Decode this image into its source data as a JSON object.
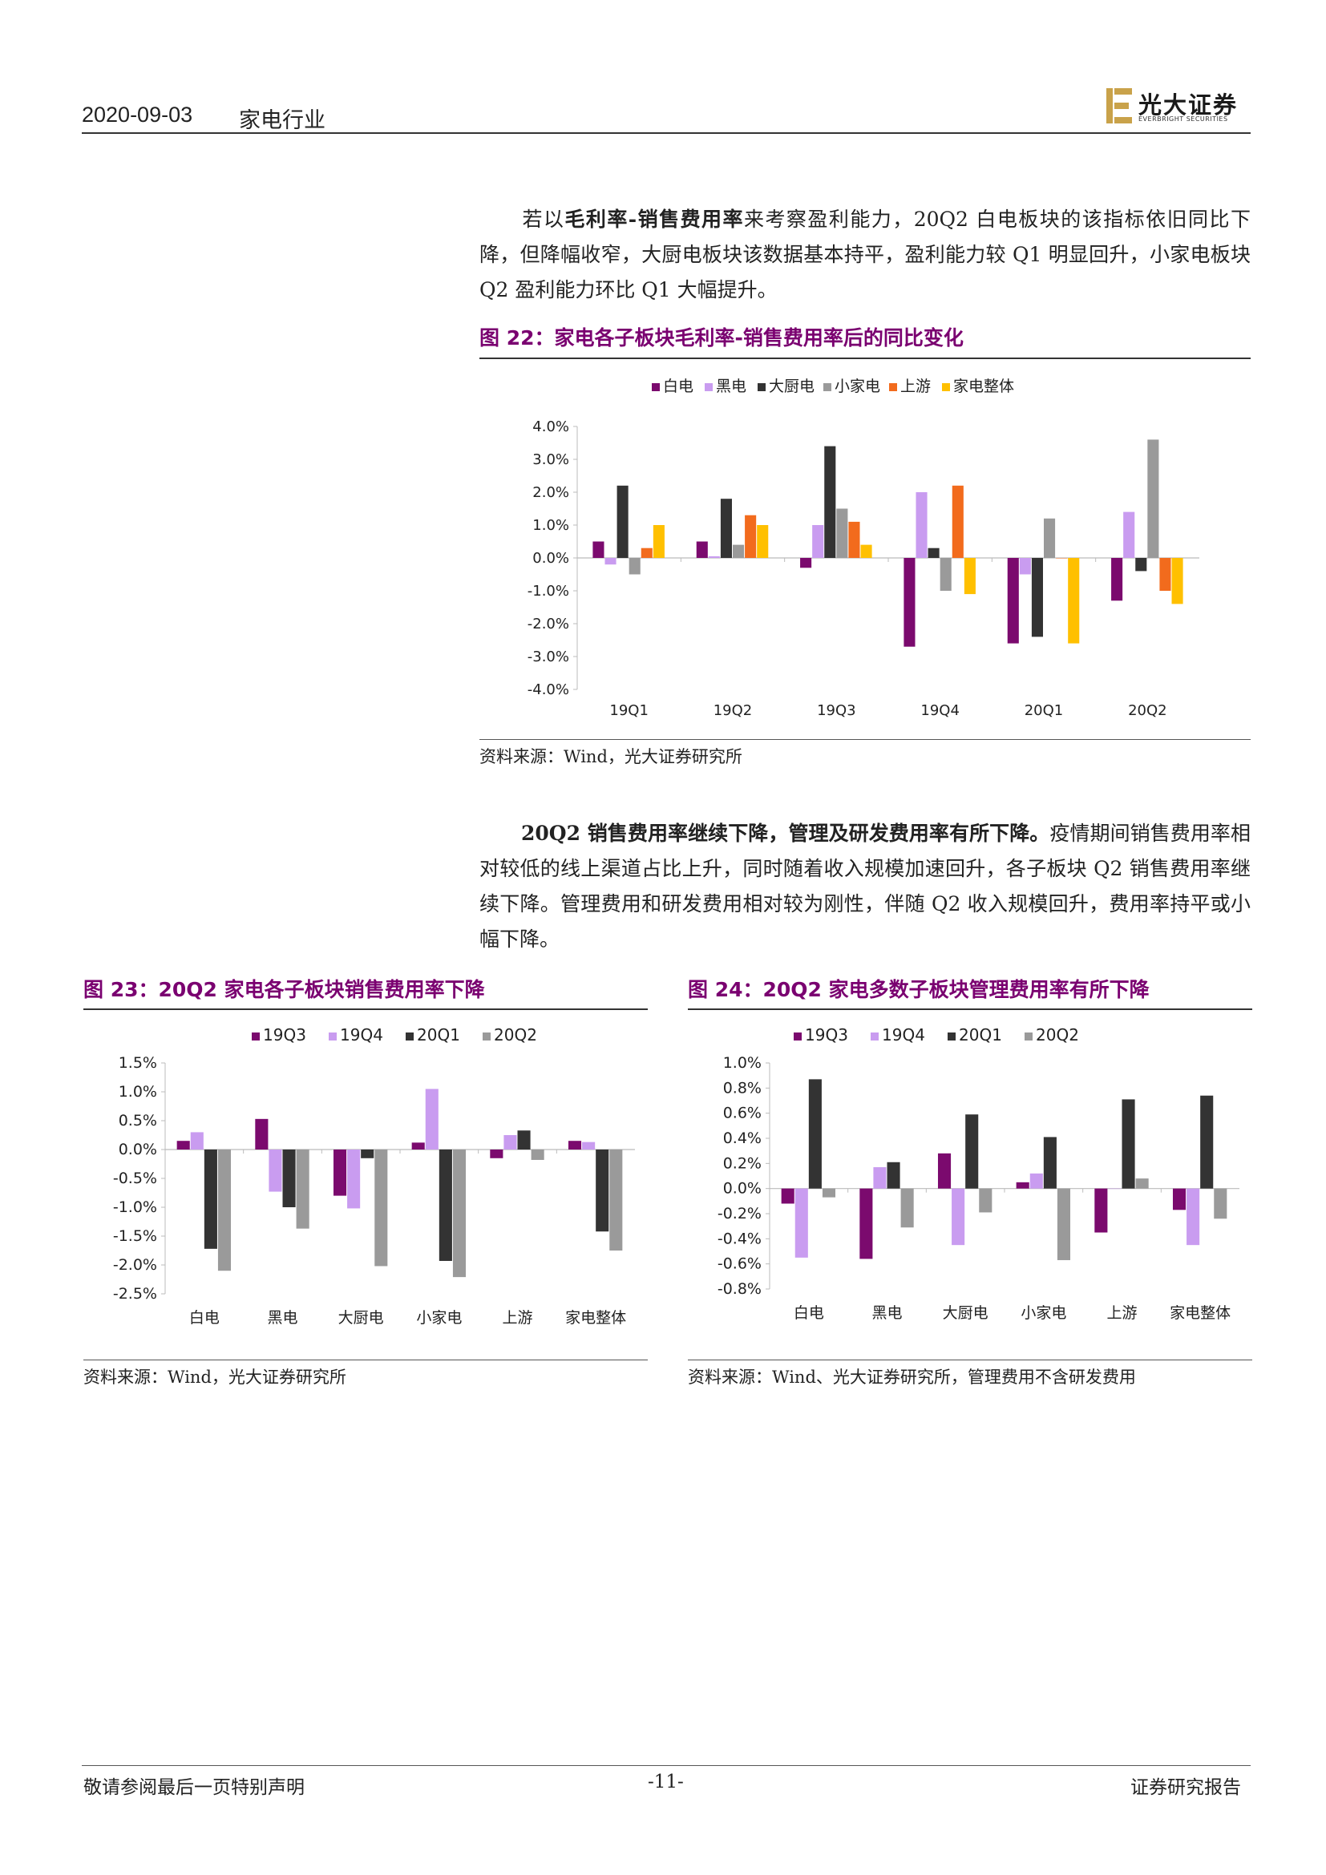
{
  "header": {
    "date": "2020-09-03",
    "industry": "家电行业",
    "logo_cn": "光大证券",
    "logo_en": "EVERBRIGHT SECURITIES"
  },
  "para1": {
    "pre": "若以",
    "bold": "毛利率-销售费用率",
    "post": "来考察盈利能力，20Q2 白电板块的该指标依旧同比下降，但降幅收窄，大厨电板块该数据基本持平，盈利能力较 Q1 明显回升，小家电板块 Q2 盈利能力环比 Q1 大幅提升。"
  },
  "para2": {
    "bold": "20Q2 销售费用率继续下降，管理及研发费用率有所下降。",
    "post": "疫情期间销售费用率相对较低的线上渠道占比上升，同时随着收入规模加速回升，各子板块 Q2 销售费用率继续下降。管理费用和研发费用相对较为刚性，伴随 Q2 收入规模回升，费用率持平或小幅下降。"
  },
  "figures": {
    "f22": {
      "title": "图 22：家电各子板块毛利率-销售费用率后的同比变化",
      "source": "资料来源：Wind，光大证券研究所"
    },
    "f23": {
      "title": "图 23：20Q2 家电各子板块销售费用率下降",
      "source": "资料来源：Wind，光大证券研究所"
    },
    "f24": {
      "title": "图 24：20Q2 家电多数子板块管理费用率有所下降",
      "source": "资料来源：Wind、光大证券研究所，管理费用不含研发费用"
    }
  },
  "footer": {
    "left": "敬请参阅最后一页特别声明",
    "page": "-11-",
    "right": "证券研究报告"
  },
  "chart_data": [
    {
      "id": "f22",
      "type": "bar",
      "categories": [
        "19Q1",
        "19Q2",
        "19Q3",
        "19Q4",
        "20Q1",
        "20Q2"
      ],
      "ylim": [
        -0.04,
        0.04
      ],
      "yticks": [
        "4.0%",
        "3.0%",
        "2.0%",
        "1.0%",
        "0.0%",
        "-1.0%",
        "-2.0%",
        "-3.0%",
        "-4.0%"
      ],
      "legend": "top",
      "series": [
        {
          "name": "白电",
          "color": "#7b0a6e",
          "values": [
            0.005,
            0.005,
            -0.003,
            -0.027,
            -0.026,
            -0.013
          ]
        },
        {
          "name": "黑电",
          "color": "#c99cf0",
          "values": [
            -0.002,
            0.0005,
            0.01,
            0.02,
            -0.005,
            0.014
          ]
        },
        {
          "name": "大厨电",
          "color": "#333333",
          "values": [
            0.022,
            0.018,
            0.034,
            0.003,
            -0.024,
            -0.004
          ]
        },
        {
          "name": "小家电",
          "color": "#9a9a9a",
          "values": [
            -0.005,
            0.004,
            0.015,
            -0.01,
            0.012,
            0.036
          ]
        },
        {
          "name": "上游",
          "color": "#f26b1d",
          "values": [
            0.003,
            0.013,
            0.011,
            0.022,
            0.0,
            -0.01
          ]
        },
        {
          "name": "家电整体",
          "color": "#ffc000",
          "values": [
            0.01,
            0.01,
            0.004,
            -0.011,
            -0.026,
            -0.014
          ]
        }
      ]
    },
    {
      "id": "f23",
      "type": "bar",
      "categories": [
        "白电",
        "黑电",
        "大厨电",
        "小家电",
        "上游",
        "家电整体"
      ],
      "ylim": [
        -0.025,
        0.015
      ],
      "yticks": [
        "1.5%",
        "1.0%",
        "0.5%",
        "0.0%",
        "-0.5%",
        "-1.0%",
        "-1.5%",
        "-2.0%",
        "-2.5%"
      ],
      "legend": "top",
      "series": [
        {
          "name": "19Q3",
          "color": "#7b0a6e",
          "values": [
            0.0015,
            0.0053,
            -0.008,
            0.0012,
            -0.0015,
            0.0015
          ]
        },
        {
          "name": "19Q4",
          "color": "#c99cf0",
          "values": [
            0.003,
            -0.0073,
            -0.0102,
            0.0105,
            0.0025,
            0.0013
          ]
        },
        {
          "name": "20Q1",
          "color": "#333333",
          "values": [
            -0.0172,
            -0.01,
            -0.0015,
            -0.0193,
            0.0033,
            -0.0142
          ]
        },
        {
          "name": "20Q2",
          "color": "#9a9a9a",
          "values": [
            -0.021,
            -0.0137,
            -0.0202,
            -0.0221,
            -0.0018,
            -0.0175
          ]
        }
      ]
    },
    {
      "id": "f24",
      "type": "bar",
      "categories": [
        "白电",
        "黑电",
        "大厨电",
        "小家电",
        "上游",
        "家电整体"
      ],
      "ylim": [
        -0.008,
        0.01
      ],
      "yticks": [
        "1.0%",
        "0.8%",
        "0.6%",
        "0.4%",
        "0.2%",
        "0.0%",
        "-0.2%",
        "-0.4%",
        "-0.6%",
        "-0.8%"
      ],
      "legend": "top",
      "series": [
        {
          "name": "19Q3",
          "color": "#7b0a6e",
          "values": [
            -0.0012,
            -0.0056,
            0.0028,
            0.0005,
            -0.0035,
            -0.0017
          ]
        },
        {
          "name": "19Q4",
          "color": "#c99cf0",
          "values": [
            -0.0055,
            0.0017,
            -0.0045,
            0.0012,
            0.0,
            -0.0045
          ]
        },
        {
          "name": "20Q1",
          "color": "#333333",
          "values": [
            0.0087,
            0.0021,
            0.0059,
            0.0041,
            0.0071,
            0.0074
          ]
        },
        {
          "name": "20Q2",
          "color": "#9a9a9a",
          "values": [
            -0.0007,
            -0.0031,
            -0.0019,
            -0.0057,
            0.0008,
            -0.0024
          ]
        }
      ]
    }
  ]
}
